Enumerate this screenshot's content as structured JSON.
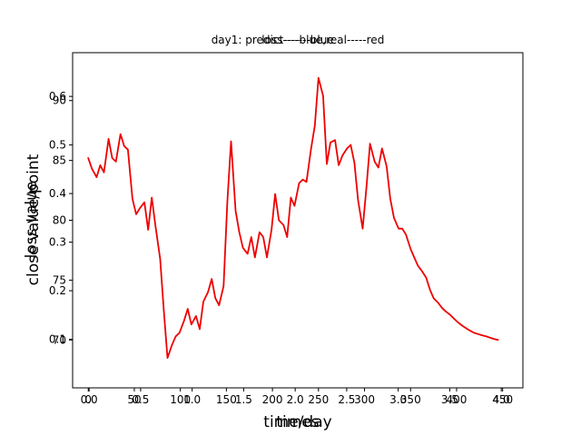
{
  "chart_data": {
    "type": "line",
    "titles": [
      "day1: predict----blue,real-----red",
      "loss-------blue"
    ],
    "xlabels": [
      "time/day",
      "times"
    ],
    "ylabels": [
      "close value/point",
      "loss value"
    ],
    "axes": [
      {
        "name": "close-axes",
        "xlim": [
          -17,
          472
        ],
        "ylim": [
          66,
          94
        ],
        "xticks": [
          0,
          50,
          100,
          150,
          200,
          250,
          300,
          350,
          400,
          450
        ],
        "xtick_labels": [
          "0",
          "50",
          "100",
          "150",
          "200",
          "250",
          "300",
          "350",
          "400",
          "450"
        ],
        "yticks": [
          70,
          75,
          80,
          85,
          90
        ],
        "ytick_labels": [
          "70",
          "75",
          "80",
          "85",
          "90"
        ]
      },
      {
        "name": "loss-axes",
        "xlim": [
          -0.16,
          4.21
        ],
        "ylim": [
          0.0,
          0.69
        ],
        "xticks": [
          0.0,
          0.5,
          1.0,
          1.5,
          2.0,
          2.5,
          3.0,
          3.5,
          4.0
        ],
        "xtick_labels": [
          "0.0",
          "0.5",
          "1.0",
          "1.5",
          "2.0",
          "2.5",
          "3.0",
          "3.5",
          "4.0"
        ],
        "yticks": [
          0.1,
          0.2,
          0.3,
          0.4,
          0.5,
          0.6
        ],
        "ytick_labels": [
          "0.1",
          "0.2",
          "0.3",
          "0.4",
          "0.5",
          "0.6"
        ]
      }
    ],
    "series": [
      {
        "name": "real",
        "color": "#ee0000",
        "x": [
          0,
          4,
          9,
          13,
          17,
          22,
          26,
          30,
          35,
          39,
          43,
          48,
          52,
          56,
          61,
          65,
          69,
          73,
          78,
          82,
          86,
          91,
          95,
          99,
          104,
          108,
          112,
          117,
          121,
          125,
          130,
          134,
          138,
          142,
          147,
          151,
          155,
          160,
          164,
          168,
          173,
          177,
          181,
          186,
          190,
          194,
          199,
          203,
          207,
          212,
          216,
          220,
          224,
          229,
          233,
          237,
          242,
          246,
          250,
          255,
          259,
          263,
          268,
          272,
          276,
          281,
          285,
          289,
          293,
          298,
          302,
          306,
          311,
          315,
          319,
          324,
          328,
          332,
          337,
          341,
          345,
          350,
          354,
          358,
          362,
          367,
          371,
          375,
          380,
          384,
          388,
          393,
          397,
          401,
          406,
          410,
          414,
          419,
          423,
          427,
          432,
          436,
          440,
          445
        ],
        "y": [
          85.2,
          84.3,
          83.6,
          84.6,
          84.0,
          86.8,
          85.2,
          84.9,
          87.2,
          86.2,
          85.9,
          81.8,
          80.5,
          81.0,
          81.5,
          79.2,
          81.9,
          79.5,
          76.8,
          72.5,
          68.5,
          69.6,
          70.3,
          70.6,
          71.6,
          72.6,
          71.3,
          72.0,
          70.9,
          73.2,
          74.0,
          75.1,
          73.5,
          72.9,
          74.5,
          81.5,
          86.6,
          80.8,
          79.0,
          77.7,
          77.2,
          78.6,
          76.9,
          79.0,
          78.6,
          76.9,
          79.2,
          82.2,
          80.0,
          79.6,
          78.6,
          81.9,
          81.2,
          83.1,
          83.4,
          83.2,
          86.0,
          87.9,
          91.9,
          90.4,
          84.7,
          86.5,
          86.7,
          84.6,
          85.4,
          86.0,
          86.3,
          84.8,
          81.7,
          79.3,
          82.7,
          86.4,
          84.9,
          84.4,
          86.0,
          84.5,
          81.8,
          80.2,
          79.3,
          79.3,
          78.8,
          77.6,
          76.9,
          76.2,
          75.8,
          75.2,
          74.2,
          73.5,
          73.1,
          72.7,
          72.4,
          72.1,
          71.8,
          71.5,
          71.2,
          71.0,
          70.8,
          70.6,
          70.5,
          70.4,
          70.3,
          70.2,
          70.1,
          70.0
        ]
      }
    ]
  }
}
